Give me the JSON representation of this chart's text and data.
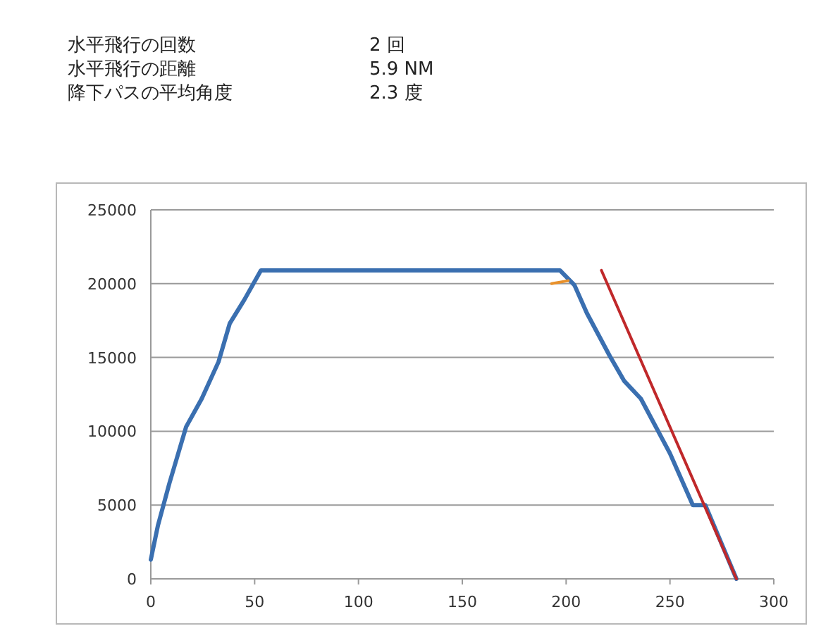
{
  "chart_data": {
    "type": "line",
    "annotations": [
      "水平飛行の回数",
      "2 回",
      "水平飛行の距離",
      "5.9 NM",
      "降下パスの平均角度",
      "2.3 度"
    ],
    "xlim": [
      0,
      300
    ],
    "xticks": [
      0,
      50,
      100,
      150,
      200,
      250,
      300
    ],
    "ylim": [
      0,
      25000
    ],
    "yticks": [
      0,
      5000,
      10000,
      15000,
      20000,
      25000
    ],
    "grid": "y",
    "marker": "none",
    "line_style": "solid",
    "series": [
      {
        "color": "#3a6fb0",
        "x": [
          0,
          3.4,
          9,
          17,
          24.5,
          32.6,
          38,
          45,
          53,
          197,
          204,
          210,
          221,
          228,
          236,
          250,
          261,
          267,
          282
        ],
        "values": [
          1300,
          3600,
          6500,
          10300,
          12200,
          14700,
          17300,
          18900,
          20900,
          20900,
          19900,
          18000,
          15100,
          13400,
          12200,
          8500,
          5000,
          5000,
          0
        ]
      },
      {
        "color": "#e8902a",
        "x": [
          193,
          201
        ],
        "values": [
          20000,
          20200
        ]
      },
      {
        "color": "#c0282a",
        "x": [
          217,
          282
        ],
        "values": [
          20900,
          0
        ]
      }
    ]
  }
}
